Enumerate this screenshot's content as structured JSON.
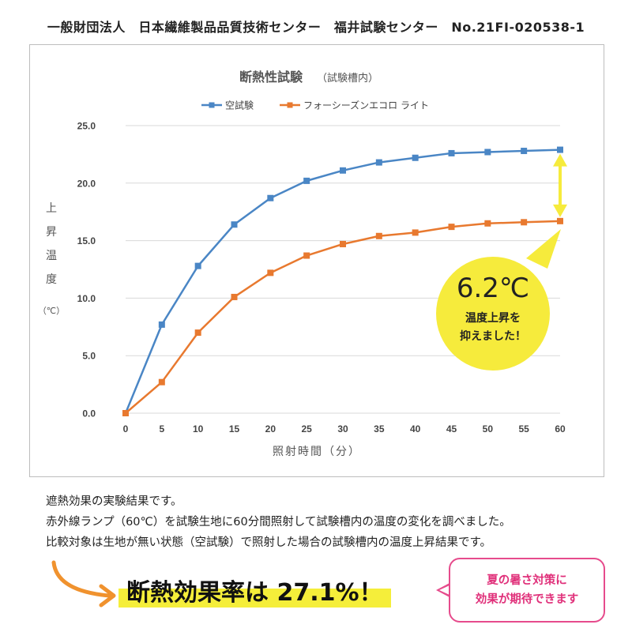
{
  "header": {
    "text": "一般財団法人　日本繊維製品品質技術センター　福井試験センター　No.21FI-020538-1"
  },
  "chart_data": {
    "type": "line",
    "title": "断熱性試験",
    "subtitle": "（試験槽内）",
    "xlabel": "照射時間（分）",
    "ylabel": [
      "上",
      "昇",
      "温",
      "度",
      "（℃）"
    ],
    "x": [
      0,
      5,
      10,
      15,
      20,
      25,
      30,
      35,
      40,
      45,
      50,
      55,
      60
    ],
    "xlim": [
      0,
      60
    ],
    "ylim": [
      0,
      25
    ],
    "yticks": [
      "0.0",
      "5.0",
      "10.0",
      "15.0",
      "20.0",
      "25.0"
    ],
    "xticks": [
      "0",
      "5",
      "10",
      "15",
      "20",
      "25",
      "30",
      "35",
      "40",
      "45",
      "50",
      "55",
      "60"
    ],
    "grid": "horizontal",
    "legend_position": "top",
    "series": [
      {
        "name": "空試験",
        "color": "#4a86c5",
        "values": [
          0.0,
          7.7,
          12.8,
          16.4,
          18.7,
          20.2,
          21.1,
          21.8,
          22.2,
          22.6,
          22.7,
          22.8,
          22.9
        ]
      },
      {
        "name": "フォーシーズンエコロ ライト",
        "color": "#e8792f",
        "values": [
          0.0,
          2.7,
          7.0,
          10.1,
          12.2,
          13.7,
          14.7,
          15.4,
          15.7,
          16.2,
          16.5,
          16.6,
          16.7
        ]
      }
    ],
    "annotation": {
      "value_text": "6.2℃",
      "line1": "温度上昇を",
      "line2": "抑えました！",
      "bubble_color": "#f6eb3c",
      "arrow_color": "#f6eb3c"
    }
  },
  "description": {
    "line1": "遮熱効果の実験結果です。",
    "line2": "赤外線ランプ（60℃）を試験生地に60分間照射して試験槽内の温度の変化を調べました。",
    "line3": "比較対象は生地が無い状態（空試験）で照射した場合の試験槽内の温度上昇結果です。"
  },
  "conclusion": {
    "text": "断熱効果率は 27.1%！",
    "highlight_color": "#f5ee3a",
    "arrow_color": "#f0922e"
  },
  "note": {
    "line1": "夏の暑さ対策に",
    "line2": "効果が期待できます",
    "color": "#e0307a"
  }
}
